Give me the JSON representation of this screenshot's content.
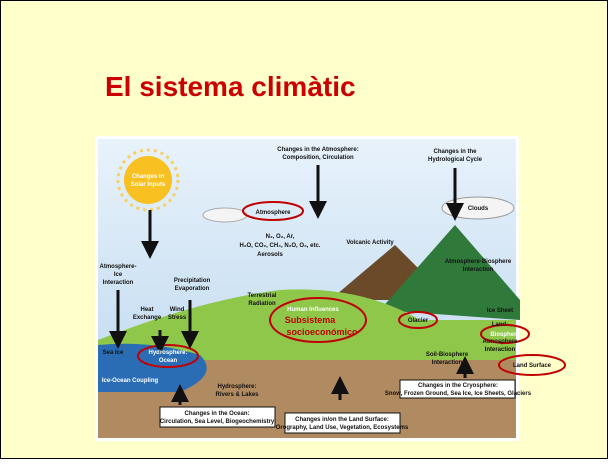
{
  "title": "El sistema climàtic",
  "diagram": {
    "labels": [
      [
        "Changes in the Atmosphere:",
        "Composition, Circulation"
      ],
      [
        "Changes in the",
        "Hydrological Cycle"
      ],
      [
        "Changes in",
        "Solar Inputs"
      ],
      [
        "Clouds"
      ],
      [
        "Atmosphere"
      ],
      [
        "N₂, O₂, Ar,",
        "H₂O, CO₂, CH₄, N₂O, O₃, etc.",
        "Aerosols"
      ],
      [
        "Volcanic Activity"
      ],
      [
        "Atmosphere-Biosphere",
        "Interaction"
      ],
      [
        "Atmosphere-",
        "Ice",
        "Interaction"
      ],
      [
        "Precipitation",
        "Evaporation"
      ],
      [
        "Heat",
        "Exchange"
      ],
      [
        "Wind",
        "Stress"
      ],
      [
        "Terrestrial",
        "Radiation"
      ],
      [
        "Human Influences"
      ],
      [
        "Subsistema",
        "socioeconómico"
      ],
      [
        "Glacier"
      ],
      [
        "Ice Sheet"
      ],
      [
        "Biosphere"
      ],
      [
        "Land-",
        "Atmosphere",
        "Interaction"
      ],
      [
        "Soil-Biosphere",
        "Interaction"
      ],
      [
        "Land Surface"
      ],
      [
        "Sea Ice"
      ],
      [
        "Hydrosphere:",
        "Ocean"
      ],
      [
        "Ice-Ocean Coupling"
      ],
      [
        "Hydrosphere:",
        "Rivers & Lakes"
      ],
      [
        "Changes in the Cryosphere:",
        "Snow, Frozen Ground, Sea Ice, Ice Sheets, Glaciers"
      ],
      [
        "Changes in the Ocean:",
        "Circulation, Sea Level, Biogeochemistry"
      ],
      [
        "Changes in/on the Land Surface:",
        "Orography, Land Use, Vegetation, Ecosystems"
      ]
    ]
  }
}
